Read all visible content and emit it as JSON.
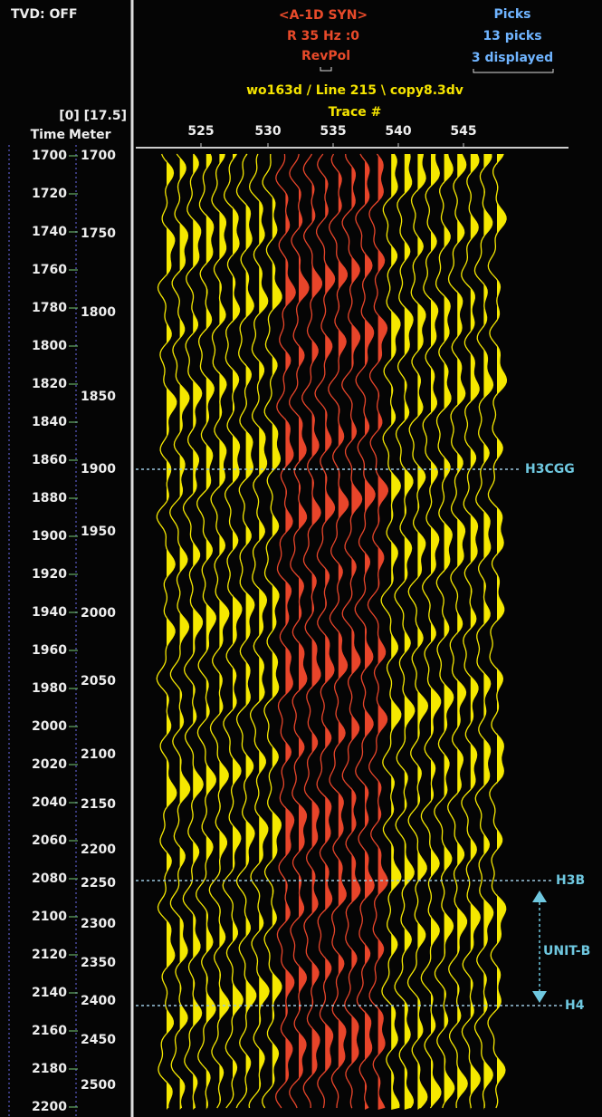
{
  "status": {
    "tvd": "TVD: OFF"
  },
  "synthetic": {
    "name": "<A-1D SYN>",
    "params": "R  35 Hz :0",
    "polarity": "RevPol"
  },
  "picks": {
    "title": "Picks",
    "count": "13 picks",
    "displayed": "3 displayed"
  },
  "line_title": "wo163d / Line 215 \\ copy8.3dv",
  "axis_header": {
    "range": "[0] [17.5]",
    "time": "Time",
    "meter": "Meter"
  },
  "trace_axis": {
    "title": "Trace #",
    "labels": [
      "525",
      "530",
      "535",
      "540",
      "545"
    ]
  },
  "time_labels": [
    "1700",
    "1720",
    "1740",
    "1760",
    "1780",
    "1800",
    "1820",
    "1840",
    "1860",
    "1880",
    "1900",
    "1920",
    "1940",
    "1960",
    "1980",
    "2000",
    "2020",
    "2040",
    "2060",
    "2080",
    "2100",
    "2120",
    "2140",
    "2160",
    "2180",
    "2200"
  ],
  "meter_labels": [
    "1700",
    "1750",
    "1800",
    "1850",
    "1900",
    "1950",
    "2000",
    "2050",
    "2100",
    "2150",
    "2200",
    "2250",
    "2300",
    "2350",
    "2400",
    "2450",
    "2500"
  ],
  "horizons": [
    {
      "label": "H3CGG"
    },
    {
      "label": "H3B"
    },
    {
      "label": "H4"
    }
  ],
  "unit_label": "UNIT-B"
}
